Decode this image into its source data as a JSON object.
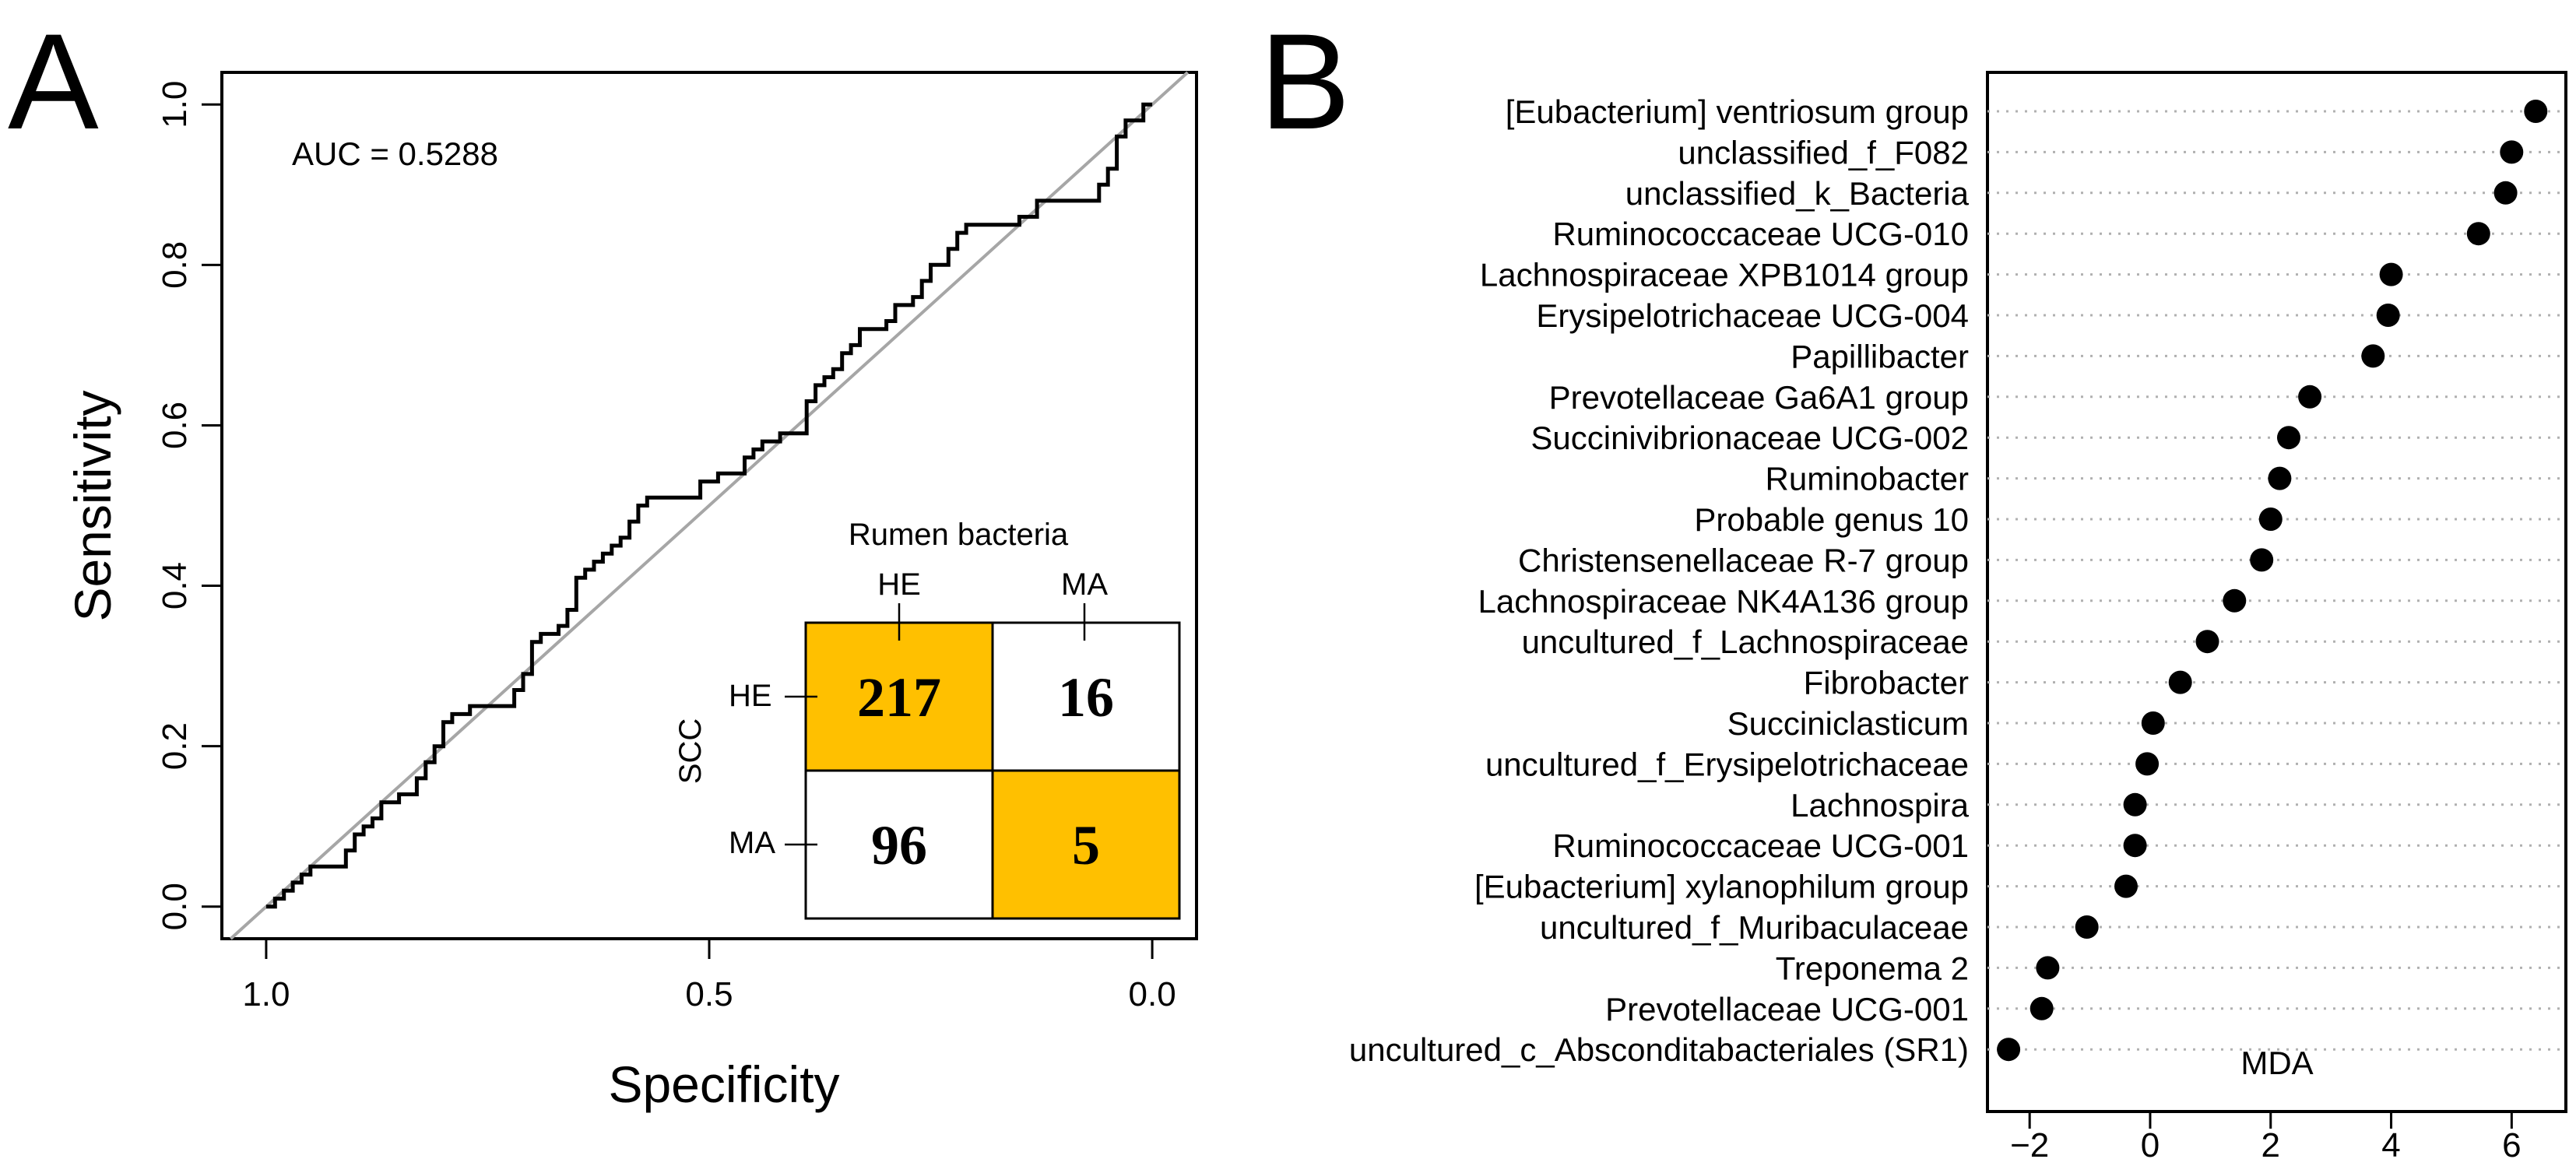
{
  "chart_data": [
    {
      "panel": "A",
      "type": "line",
      "title": "",
      "note": "AUC = 0.5288",
      "xlabel": "Specificity",
      "ylabel": "Sensitivity",
      "xlim": [
        1.05,
        -0.05
      ],
      "ylim": [
        -0.04,
        1.04
      ],
      "xticks": [
        {
          "v": 1.0,
          "label": "1.0"
        },
        {
          "v": 0.5,
          "label": "0.5"
        },
        {
          "v": 0.0,
          "label": "0.0"
        }
      ],
      "yticks": [
        {
          "v": 0.0,
          "label": "0.0"
        },
        {
          "v": 0.2,
          "label": "0.2"
        },
        {
          "v": 0.4,
          "label": "0.4"
        },
        {
          "v": 0.6,
          "label": "0.6"
        },
        {
          "v": 0.8,
          "label": "0.8"
        },
        {
          "v": 1.0,
          "label": "1.0"
        }
      ],
      "diagonal": true,
      "roc_points": [
        [
          1.0,
          0.0
        ],
        [
          0.99,
          0.0
        ],
        [
          0.99,
          0.01
        ],
        [
          0.98,
          0.01
        ],
        [
          0.98,
          0.02
        ],
        [
          0.97,
          0.02
        ],
        [
          0.97,
          0.03
        ],
        [
          0.96,
          0.03
        ],
        [
          0.96,
          0.04
        ],
        [
          0.95,
          0.04
        ],
        [
          0.95,
          0.05
        ],
        [
          0.91,
          0.05
        ],
        [
          0.91,
          0.07
        ],
        [
          0.9,
          0.07
        ],
        [
          0.9,
          0.09
        ],
        [
          0.89,
          0.09
        ],
        [
          0.89,
          0.1
        ],
        [
          0.88,
          0.1
        ],
        [
          0.88,
          0.11
        ],
        [
          0.87,
          0.11
        ],
        [
          0.87,
          0.13
        ],
        [
          0.85,
          0.13
        ],
        [
          0.85,
          0.14
        ],
        [
          0.83,
          0.14
        ],
        [
          0.83,
          0.16
        ],
        [
          0.82,
          0.16
        ],
        [
          0.82,
          0.18
        ],
        [
          0.81,
          0.18
        ],
        [
          0.81,
          0.2
        ],
        [
          0.8,
          0.2
        ],
        [
          0.8,
          0.23
        ],
        [
          0.79,
          0.23
        ],
        [
          0.79,
          0.24
        ],
        [
          0.77,
          0.24
        ],
        [
          0.77,
          0.25
        ],
        [
          0.72,
          0.25
        ],
        [
          0.72,
          0.27
        ],
        [
          0.71,
          0.27
        ],
        [
          0.71,
          0.29
        ],
        [
          0.7,
          0.29
        ],
        [
          0.7,
          0.33
        ],
        [
          0.69,
          0.33
        ],
        [
          0.69,
          0.34
        ],
        [
          0.67,
          0.34
        ],
        [
          0.67,
          0.35
        ],
        [
          0.66,
          0.35
        ],
        [
          0.66,
          0.37
        ],
        [
          0.65,
          0.37
        ],
        [
          0.65,
          0.41
        ],
        [
          0.64,
          0.41
        ],
        [
          0.64,
          0.42
        ],
        [
          0.63,
          0.42
        ],
        [
          0.63,
          0.43
        ],
        [
          0.62,
          0.43
        ],
        [
          0.62,
          0.44
        ],
        [
          0.61,
          0.44
        ],
        [
          0.61,
          0.45
        ],
        [
          0.6,
          0.45
        ],
        [
          0.6,
          0.46
        ],
        [
          0.59,
          0.46
        ],
        [
          0.59,
          0.48
        ],
        [
          0.58,
          0.48
        ],
        [
          0.58,
          0.5
        ],
        [
          0.57,
          0.5
        ],
        [
          0.57,
          0.51
        ],
        [
          0.51,
          0.51
        ],
        [
          0.51,
          0.53
        ],
        [
          0.49,
          0.53
        ],
        [
          0.49,
          0.54
        ],
        [
          0.46,
          0.54
        ],
        [
          0.46,
          0.56
        ],
        [
          0.45,
          0.56
        ],
        [
          0.45,
          0.57
        ],
        [
          0.44,
          0.57
        ],
        [
          0.44,
          0.58
        ],
        [
          0.42,
          0.58
        ],
        [
          0.42,
          0.59
        ],
        [
          0.39,
          0.59
        ],
        [
          0.39,
          0.63
        ],
        [
          0.38,
          0.63
        ],
        [
          0.38,
          0.65
        ],
        [
          0.37,
          0.65
        ],
        [
          0.37,
          0.66
        ],
        [
          0.36,
          0.66
        ],
        [
          0.36,
          0.67
        ],
        [
          0.35,
          0.67
        ],
        [
          0.35,
          0.69
        ],
        [
          0.34,
          0.69
        ],
        [
          0.34,
          0.7
        ],
        [
          0.33,
          0.7
        ],
        [
          0.33,
          0.72
        ],
        [
          0.3,
          0.72
        ],
        [
          0.3,
          0.73
        ],
        [
          0.29,
          0.73
        ],
        [
          0.29,
          0.75
        ],
        [
          0.27,
          0.75
        ],
        [
          0.27,
          0.76
        ],
        [
          0.26,
          0.76
        ],
        [
          0.26,
          0.78
        ],
        [
          0.25,
          0.78
        ],
        [
          0.25,
          0.8
        ],
        [
          0.23,
          0.8
        ],
        [
          0.23,
          0.82
        ],
        [
          0.22,
          0.82
        ],
        [
          0.22,
          0.84
        ],
        [
          0.21,
          0.84
        ],
        [
          0.21,
          0.85
        ],
        [
          0.15,
          0.85
        ],
        [
          0.15,
          0.86
        ],
        [
          0.13,
          0.86
        ],
        [
          0.13,
          0.88
        ],
        [
          0.06,
          0.88
        ],
        [
          0.06,
          0.9
        ],
        [
          0.05,
          0.9
        ],
        [
          0.05,
          0.92
        ],
        [
          0.04,
          0.92
        ],
        [
          0.04,
          0.96
        ],
        [
          0.03,
          0.96
        ],
        [
          0.03,
          0.98
        ],
        [
          0.01,
          0.98
        ],
        [
          0.01,
          1.0
        ],
        [
          0.0,
          1.0
        ]
      ],
      "confusion_matrix": {
        "title": "Rumen bacteria",
        "row_axis_label": "SCC",
        "columns": [
          "HE",
          "MA"
        ],
        "rows": [
          "HE",
          "MA"
        ],
        "cells": [
          [
            217,
            16
          ],
          [
            96,
            5
          ]
        ],
        "highlight_color": "#FFC000"
      }
    },
    {
      "panel": "B",
      "type": "scatter",
      "title": "",
      "xlabel": "MDA",
      "xlim": [
        -2.7,
        6.9
      ],
      "xticks": [
        -2,
        0,
        2,
        4,
        6
      ],
      "xtick_labels": [
        "−2",
        "0",
        "2",
        "4",
        "6"
      ],
      "categories": [
        "[Eubacterium] ventriosum group",
        "unclassified_f_F082",
        "unclassified_k_Bacteria",
        "Ruminococcaceae UCG-010",
        "Lachnospiraceae XPB1014 group",
        "Erysipelotrichaceae UCG-004",
        "Papillibacter",
        "Prevotellaceae Ga6A1 group",
        "Succinivibrionaceae UCG-002",
        "Ruminobacter",
        "Probable genus 10",
        "Christensenellaceae R-7 group",
        "Lachnospiraceae NK4A136 group",
        "uncultured_f_Lachnospiraceae",
        "Fibrobacter",
        "Succiniclasticum",
        "uncultured_f_Erysipelotrichaceae",
        "Lachnospira",
        "Ruminococcaceae UCG-001",
        "[Eubacterium] xylanophilum group",
        "uncultured_f_Muribaculaceae",
        "Treponema 2",
        "Prevotellaceae UCG-001",
        "uncultured_c_Absconditabacteriales (SR1)"
      ],
      "values": [
        6.4,
        6.0,
        5.9,
        5.45,
        4.0,
        3.95,
        3.7,
        2.65,
        2.3,
        2.15,
        2.0,
        1.85,
        1.4,
        0.95,
        0.5,
        0.05,
        -0.05,
        -0.25,
        -0.25,
        -0.4,
        -1.05,
        -1.7,
        -1.8,
        -2.35
      ]
    }
  ]
}
